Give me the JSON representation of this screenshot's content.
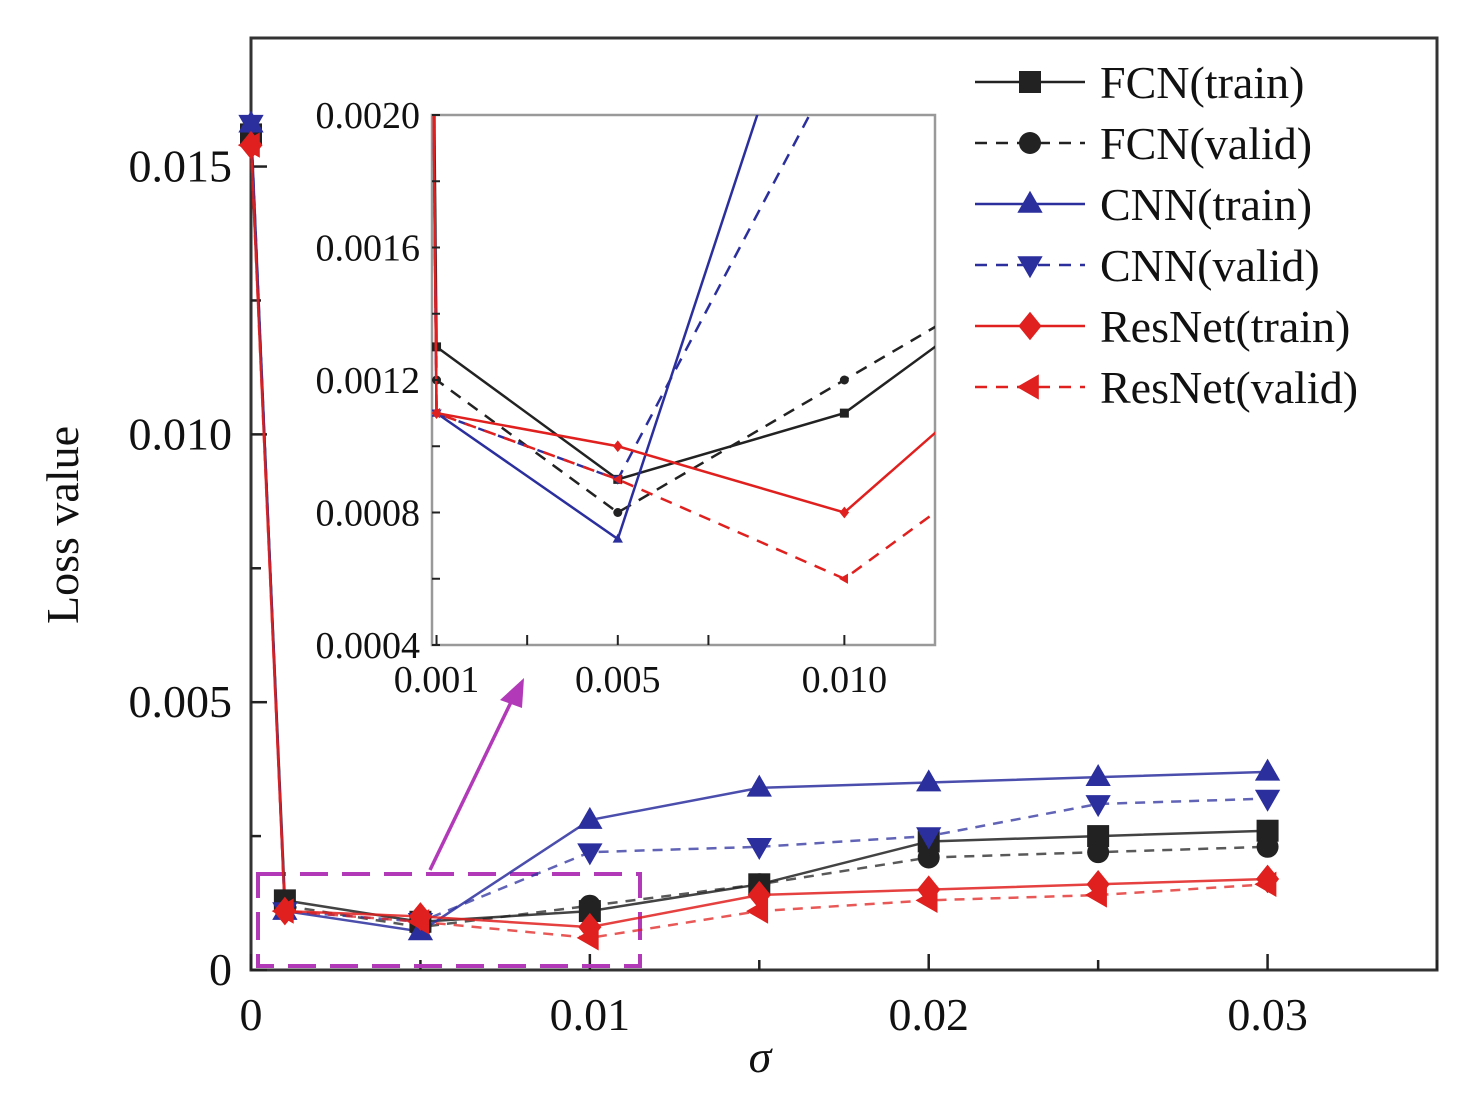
{
  "chart_data": [
    {
      "id": "main",
      "type": "line",
      "title": "",
      "xlabel": "σ",
      "ylabel": "Loss value",
      "xlim": [
        0,
        0.035
      ],
      "ylim": [
        0,
        0.0174
      ],
      "xticks": [
        0,
        0.01,
        0.02,
        0.03
      ],
      "xtick_labels": [
        "0",
        "0.01",
        "0.02",
        "0.03"
      ],
      "yticks": [
        0,
        0.005,
        0.01,
        0.015
      ],
      "ytick_labels": [
        "0",
        "0.005",
        "0.010",
        "0.015"
      ],
      "grid": false,
      "legend_position": "top-right",
      "x": [
        0,
        0.001,
        0.005,
        0.01,
        0.015,
        0.02,
        0.025,
        0.03
      ],
      "series": [
        {
          "name": "FCN(train)",
          "color": "#222222",
          "dash": false,
          "marker": "square",
          "values": [
            0.0156,
            0.0013,
            0.0009,
            0.0011,
            0.0016,
            0.0024,
            0.0025,
            0.0026
          ]
        },
        {
          "name": "FCN(valid)",
          "color": "#222222",
          "dash": true,
          "marker": "circle",
          "values": [
            0.0156,
            0.0012,
            0.0008,
            0.0012,
            0.0016,
            0.0021,
            0.0022,
            0.0023
          ]
        },
        {
          "name": "CNN(train)",
          "color": "#2b2f9e",
          "dash": false,
          "marker": "triangle-up",
          "values": [
            0.0158,
            0.0011,
            0.00072,
            0.0028,
            0.0034,
            0.0035,
            0.0036,
            0.0037
          ]
        },
        {
          "name": "CNN(valid)",
          "color": "#2b2f9e",
          "dash": true,
          "marker": "triangle-down",
          "values": [
            0.0158,
            0.0011,
            0.0009,
            0.0022,
            0.0023,
            0.0025,
            0.0031,
            0.0032
          ]
        },
        {
          "name": "ResNet(train)",
          "color": "#e0201e",
          "dash": false,
          "marker": "diamond",
          "values": [
            0.0154,
            0.0011,
            0.001,
            0.0008,
            0.0014,
            0.0015,
            0.0016,
            0.0017
          ]
        },
        {
          "name": "ResNet(valid)",
          "color": "#e0201e",
          "dash": true,
          "marker": "triangle-left",
          "values": [
            0.0154,
            0.0011,
            0.0009,
            0.0006,
            0.0011,
            0.0013,
            0.0014,
            0.0016
          ]
        }
      ]
    },
    {
      "id": "inset",
      "type": "line",
      "title": "",
      "xlim": [
        0.0009,
        0.012
      ],
      "ylim": [
        0.0004,
        0.002
      ],
      "xticks": [
        0.001,
        0.005,
        0.01
      ],
      "xtick_labels": [
        "0.001",
        "0.005",
        "0.010"
      ],
      "yticks": [
        0.002,
        0.0016,
        0.0012,
        0.0008,
        0.0004
      ],
      "ytick_labels": [
        "0.0020",
        "0.0016",
        "0.0012",
        "0.0008",
        "0.0004"
      ],
      "grid": false,
      "note": "zoomed view of the main chart's series"
    }
  ],
  "highlight_color": "#b23ab8"
}
